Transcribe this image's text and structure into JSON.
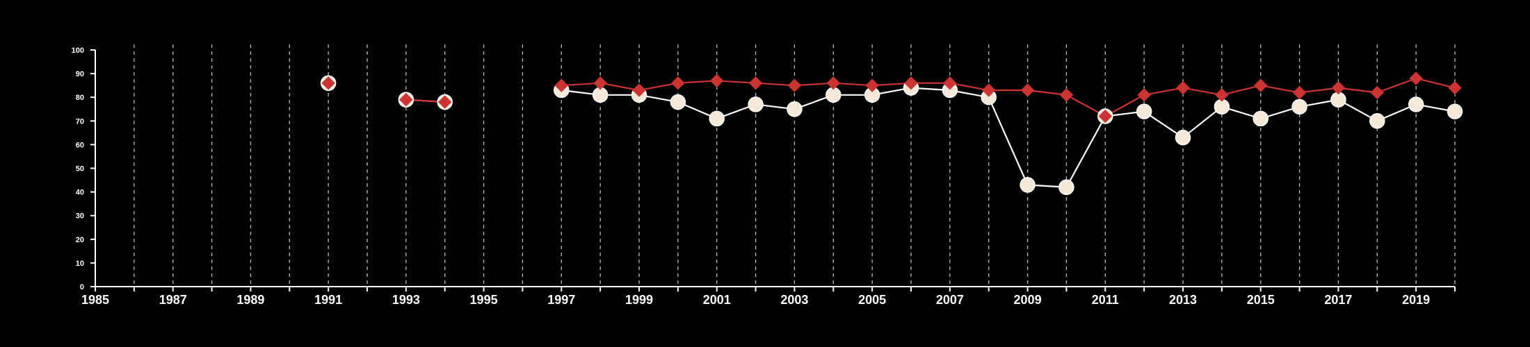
{
  "chart_data": {
    "type": "line",
    "title": "",
    "xlabel": "",
    "ylabel": "",
    "xlim": [
      1985,
      2020
    ],
    "ylim": [
      0,
      100
    ],
    "x_ticks_labeled": [
      1985,
      1987,
      1989,
      1991,
      1993,
      1995,
      1997,
      1999,
      2001,
      2003,
      2005,
      2007,
      2009,
      2011,
      2013,
      2015,
      2017,
      2019
    ],
    "y_ticks": [
      0,
      10,
      20,
      30,
      40,
      50,
      60,
      70,
      80,
      90,
      100
    ],
    "grid": "vertical dashed lines at every year",
    "legend": "none",
    "colors": {
      "background": "#000000",
      "axis": "#ffffff",
      "grid": "#bbbbbb"
    },
    "series": [
      {
        "marker": "circle",
        "color": "#f7e9d7",
        "points": [
          {
            "x": 1991,
            "y": 86
          },
          {
            "x": 1993,
            "y": 79
          },
          {
            "x": 1994,
            "y": 78
          },
          {
            "x": 1997,
            "y": 83
          },
          {
            "x": 1998,
            "y": 81
          },
          {
            "x": 1999,
            "y": 81
          },
          {
            "x": 2000,
            "y": 78
          },
          {
            "x": 2001,
            "y": 71
          },
          {
            "x": 2002,
            "y": 77
          },
          {
            "x": 2003,
            "y": 75
          },
          {
            "x": 2004,
            "y": 81
          },
          {
            "x": 2005,
            "y": 81
          },
          {
            "x": 2006,
            "y": 84
          },
          {
            "x": 2007,
            "y": 83
          },
          {
            "x": 2008,
            "y": 80
          },
          {
            "x": 2009,
            "y": 43
          },
          {
            "x": 2010,
            "y": 42
          },
          {
            "x": 2011,
            "y": 72
          },
          {
            "x": 2012,
            "y": 74
          },
          {
            "x": 2013,
            "y": 63
          },
          {
            "x": 2014,
            "y": 76
          },
          {
            "x": 2015,
            "y": 71
          },
          {
            "x": 2016,
            "y": 76
          },
          {
            "x": 2017,
            "y": 79
          },
          {
            "x": 2018,
            "y": 70
          },
          {
            "x": 2019,
            "y": 77
          },
          {
            "x": 2020,
            "y": 74
          }
        ]
      },
      {
        "marker": "diamond",
        "color": "#cc3333",
        "points": [
          {
            "x": 1991,
            "y": 86
          },
          {
            "x": 1993,
            "y": 79
          },
          {
            "x": 1994,
            "y": 78
          },
          {
            "x": 1997,
            "y": 85
          },
          {
            "x": 1998,
            "y": 86
          },
          {
            "x": 1999,
            "y": 83
          },
          {
            "x": 2000,
            "y": 86
          },
          {
            "x": 2001,
            "y": 87
          },
          {
            "x": 2002,
            "y": 86
          },
          {
            "x": 2003,
            "y": 85
          },
          {
            "x": 2004,
            "y": 86
          },
          {
            "x": 2005,
            "y": 85
          },
          {
            "x": 2006,
            "y": 86
          },
          {
            "x": 2007,
            "y": 86
          },
          {
            "x": 2008,
            "y": 83
          },
          {
            "x": 2009,
            "y": 83
          },
          {
            "x": 2010,
            "y": 81
          },
          {
            "x": 2011,
            "y": 72
          },
          {
            "x": 2012,
            "y": 81
          },
          {
            "x": 2013,
            "y": 84
          },
          {
            "x": 2014,
            "y": 81
          },
          {
            "x": 2015,
            "y": 85
          },
          {
            "x": 2016,
            "y": 82
          },
          {
            "x": 2017,
            "y": 84
          },
          {
            "x": 2018,
            "y": 82
          },
          {
            "x": 2019,
            "y": 88
          },
          {
            "x": 2020,
            "y": 84
          }
        ]
      }
    ]
  }
}
